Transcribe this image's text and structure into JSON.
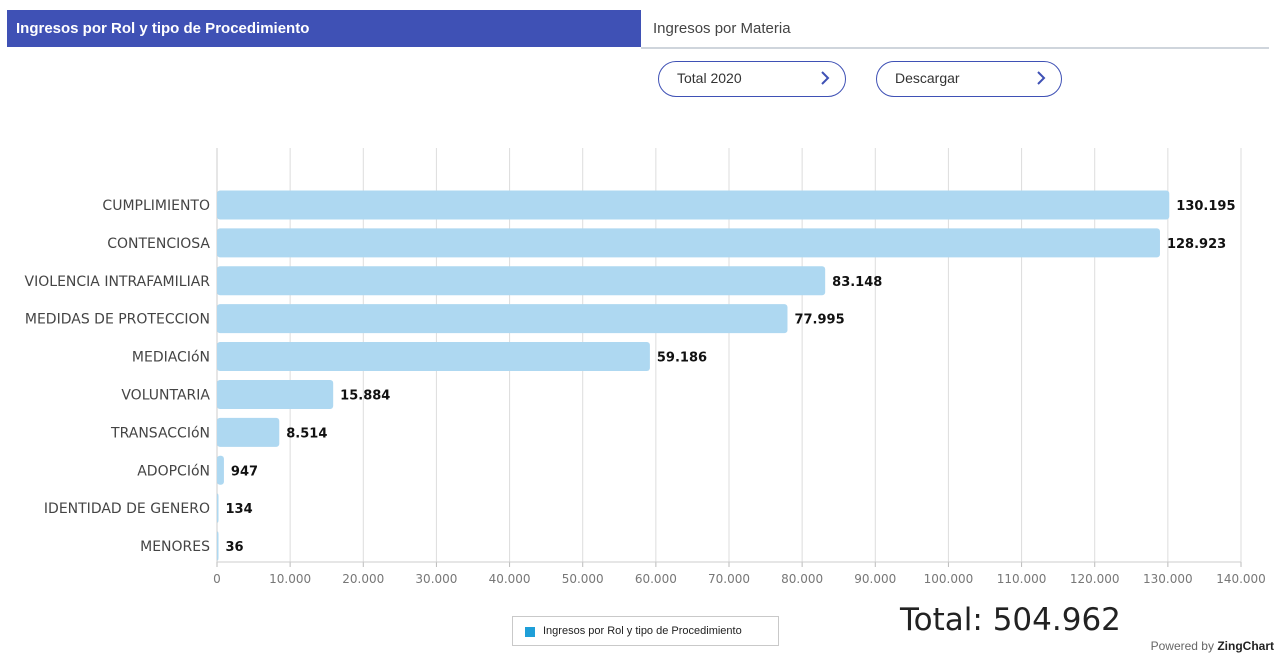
{
  "tabs": {
    "active": "Ingresos por Rol y tipo de Procedimiento",
    "inactive": "Ingresos por Materia"
  },
  "controls": {
    "period_label": "Total 2020",
    "download_label": "Descargar"
  },
  "colors": {
    "accent": "#3f51b5",
    "bar": "#aed8f1",
    "legend_marker": "#1e9fd8",
    "grid": "#dddddd"
  },
  "chart_data": {
    "type": "bar",
    "orientation": "horizontal",
    "categories": [
      "CUMPLIMIENTO",
      "CONTENCIOSA",
      "VIOLENCIA INTRAFAMILIAR",
      "MEDIDAS DE PROTECCION",
      "MEDIACIóN",
      "VOLUNTARIA",
      "TRANSACCIóN",
      "ADOPCIóN",
      "IDENTIDAD DE GENERO",
      "MENORES"
    ],
    "values": [
      130195,
      128923,
      83148,
      77995,
      59186,
      15884,
      8514,
      947,
      134,
      36
    ],
    "value_labels": [
      "130.195",
      "128.923",
      "83.148",
      "77.995",
      "59.186",
      "15.884",
      "8.514",
      "947",
      "134",
      "36"
    ],
    "series": [
      {
        "name": "Ingresos por Rol y tipo de Procedimiento"
      }
    ],
    "xlim": [
      0,
      140000
    ],
    "x_ticks": [
      "0",
      "10.000",
      "20.000",
      "30.000",
      "40.000",
      "50.000",
      "60.000",
      "70.000",
      "80.000",
      "90.000",
      "100.000",
      "110.000",
      "120.000",
      "130.000",
      "140.000"
    ],
    "grid": true,
    "legend_position": "bottom"
  },
  "total_label": "Total: 504.962",
  "footer": {
    "powered_prefix": "Powered by",
    "powered_brand": "ZingChart"
  }
}
